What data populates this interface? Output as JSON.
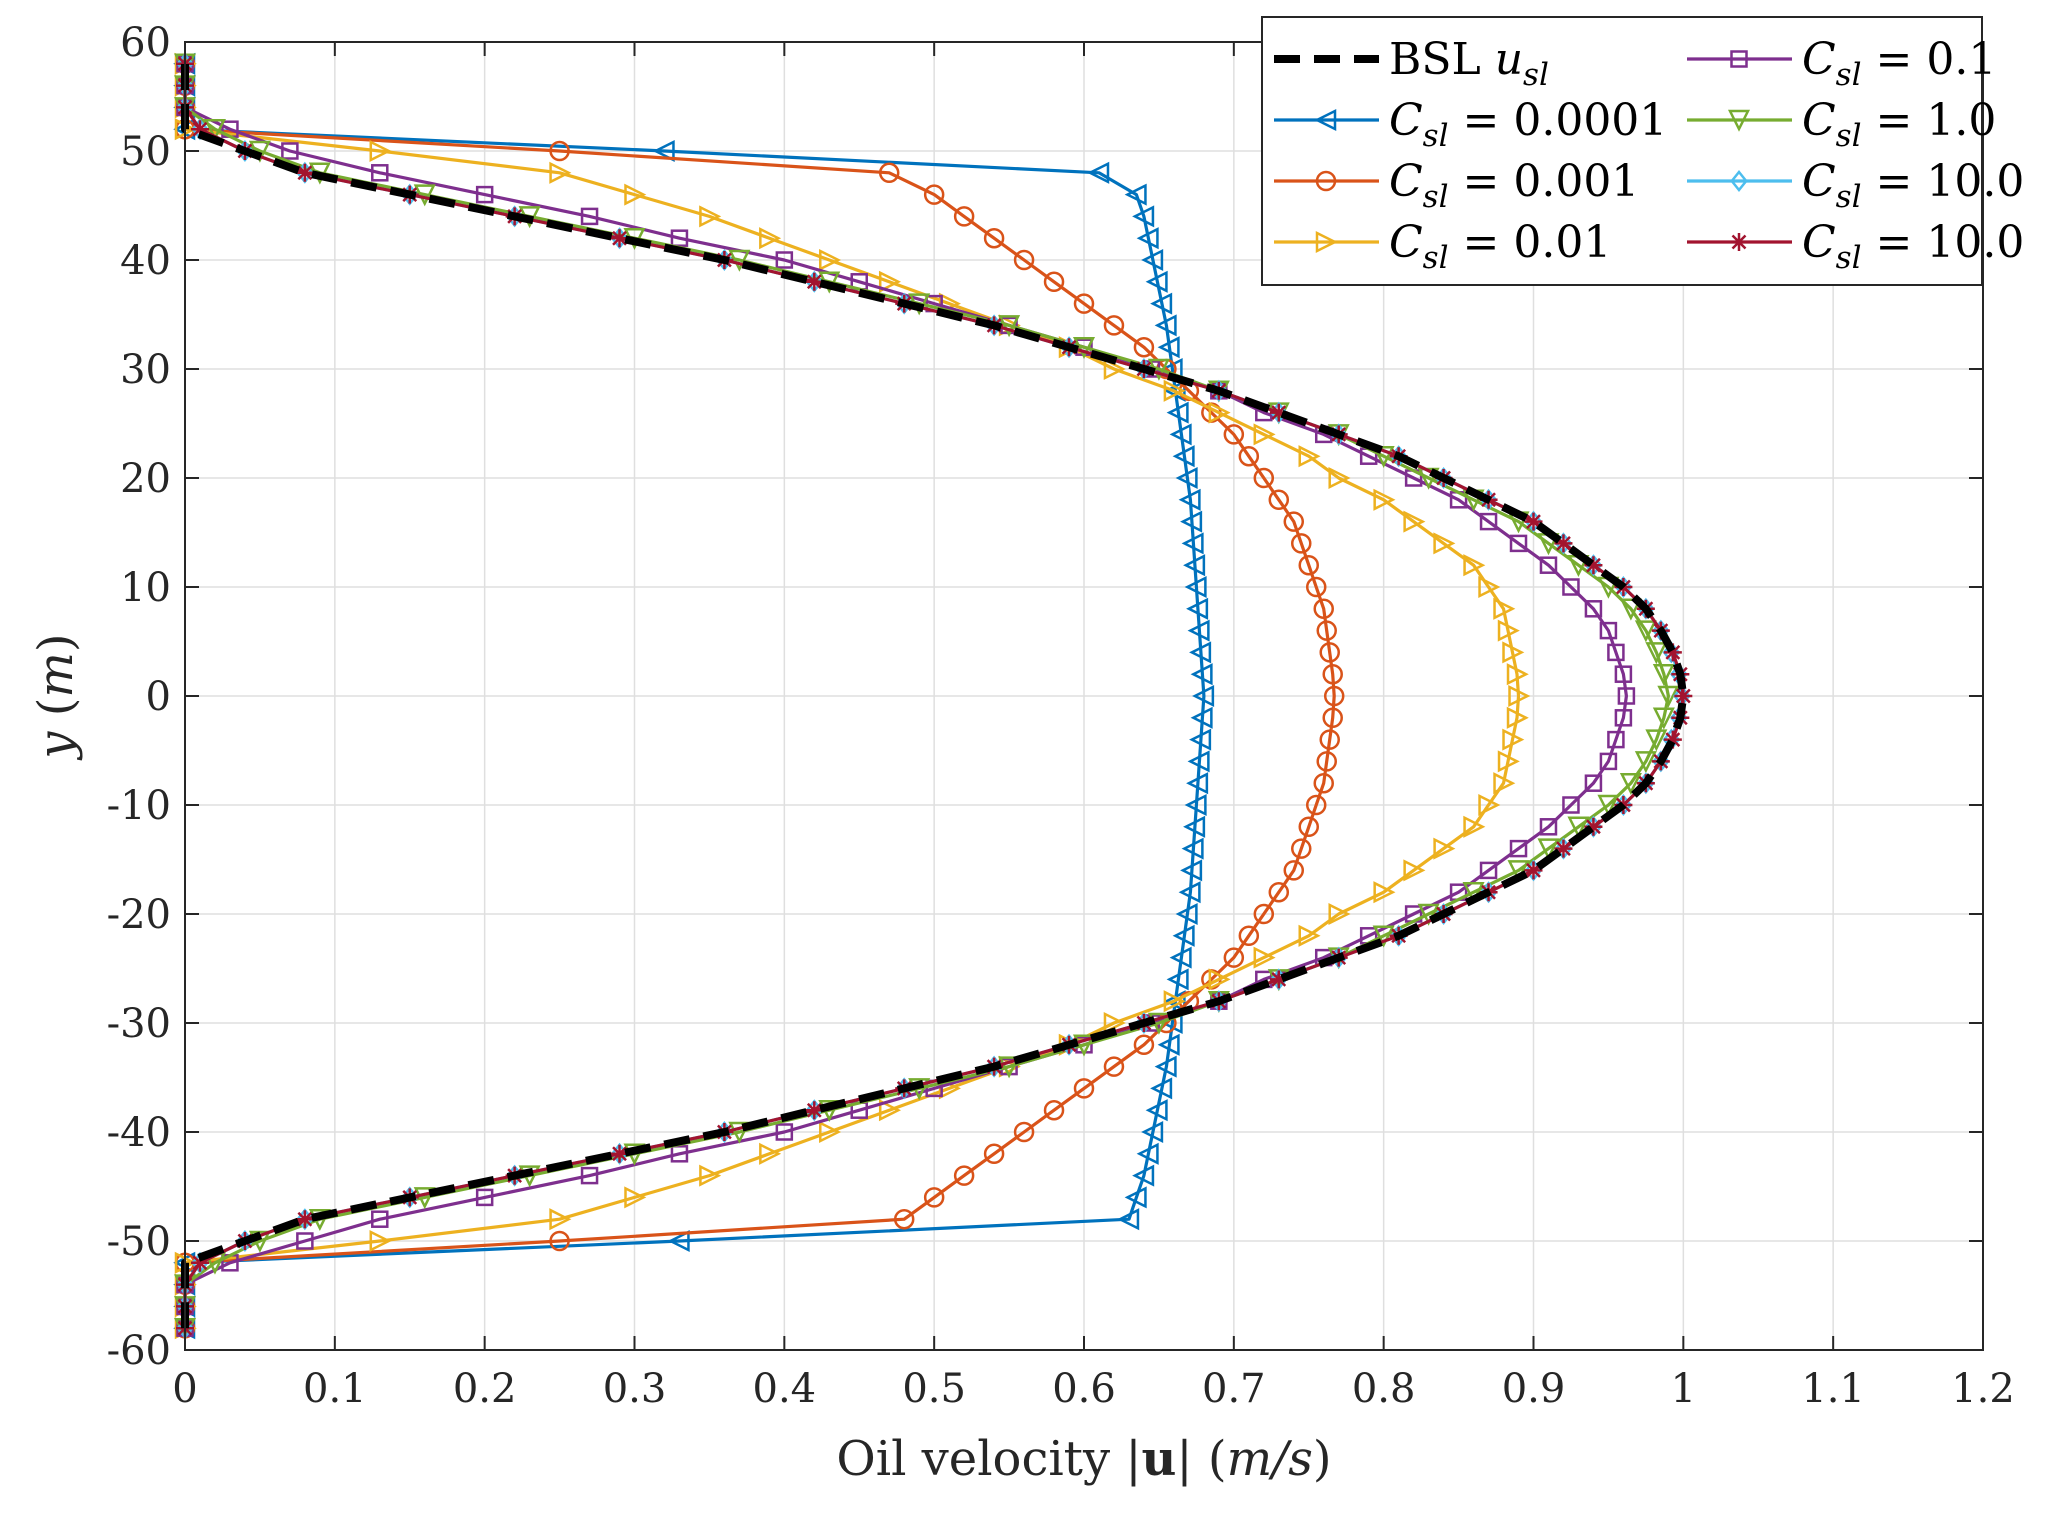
{
  "chart_data": {
    "type": "line",
    "title": "",
    "xlabel_parts": [
      "Oil velocity |",
      "u",
      "| (",
      "m/s",
      ")"
    ],
    "ylabel_parts": [
      "y",
      " (",
      "m",
      ")"
    ],
    "xlim": [
      0,
      1.2
    ],
    "ylim": [
      -60,
      60
    ],
    "xticks": [
      0,
      0.1,
      0.2,
      0.3,
      0.4,
      0.5,
      0.6,
      0.7,
      0.8,
      0.9,
      1,
      1.1,
      1.2
    ],
    "xtick_labels": [
      "0",
      "0.1",
      "0.2",
      "0.3",
      "0.4",
      "0.5",
      "0.6",
      "0.7",
      "0.8",
      "0.9",
      "1",
      "1.1",
      "1.2"
    ],
    "yticks": [
      -60,
      -50,
      -40,
      -30,
      -20,
      -10,
      0,
      10,
      20,
      30,
      40,
      50,
      60
    ],
    "ytick_labels": [
      "-60",
      "-50",
      "-40",
      "-30",
      "-20",
      "-10",
      "0",
      "10",
      "20",
      "30",
      "40",
      "50",
      "60"
    ],
    "grid": true,
    "legend_position": "top-right",
    "y": [
      -58,
      -56,
      -54,
      -52,
      -50,
      -48,
      -46,
      -44,
      -42,
      -40,
      -38,
      -36,
      -34,
      -32,
      -30,
      -28,
      -26,
      -24,
      -22,
      -20,
      -18,
      -16,
      -14,
      -12,
      -10,
      -8,
      -6,
      -4,
      -2,
      0,
      2,
      4,
      6,
      8,
      10,
      12,
      14,
      16,
      18,
      20,
      22,
      24,
      26,
      28,
      30,
      32,
      34,
      36,
      38,
      40,
      42,
      44,
      46,
      48,
      50,
      52,
      54,
      56,
      58
    ],
    "series": [
      {
        "name": "BSL u_sl",
        "label_main": "BSL ",
        "label_var": "u",
        "label_sub": "sl",
        "label_value": "",
        "color": "#000000",
        "style": "dashed",
        "marker": "none",
        "values": [
          0,
          0,
          0,
          0,
          0.04,
          0.08,
          0.15,
          0.22,
          0.29,
          0.36,
          0.42,
          0.48,
          0.54,
          0.59,
          0.64,
          0.69,
          0.73,
          0.77,
          0.81,
          0.84,
          0.87,
          0.9,
          0.92,
          0.94,
          0.96,
          0.975,
          0.985,
          0.993,
          0.998,
          1,
          0.998,
          0.993,
          0.985,
          0.975,
          0.96,
          0.94,
          0.92,
          0.9,
          0.87,
          0.84,
          0.81,
          0.77,
          0.73,
          0.69,
          0.64,
          0.59,
          0.54,
          0.48,
          0.42,
          0.36,
          0.29,
          0.22,
          0.15,
          0.08,
          0.04,
          0,
          0,
          0,
          0
        ]
      },
      {
        "name": "C_sl = 0.0001",
        "label_main": "",
        "label_var": "C",
        "label_sub": "sl",
        "label_value": " = 0.0001",
        "color": "#0072BD",
        "style": "solid",
        "marker": "triangle-left",
        "values": [
          0,
          0,
          0,
          0,
          0.33,
          0.63,
          0.635,
          0.64,
          0.643,
          0.646,
          0.649,
          0.652,
          0.655,
          0.657,
          0.659,
          0.661,
          0.663,
          0.665,
          0.667,
          0.669,
          0.671,
          0.672,
          0.673,
          0.674,
          0.675,
          0.676,
          0.677,
          0.678,
          0.679,
          0.68,
          0.679,
          0.678,
          0.677,
          0.676,
          0.675,
          0.674,
          0.673,
          0.672,
          0.671,
          0.669,
          0.667,
          0.665,
          0.663,
          0.661,
          0.659,
          0.657,
          0.655,
          0.652,
          0.649,
          0.646,
          0.643,
          0.64,
          0.635,
          0.61,
          0.32,
          0,
          0,
          0,
          0
        ]
      },
      {
        "name": "C_sl = 0.001",
        "label_main": "",
        "label_var": "C",
        "label_sub": "sl",
        "label_value": " = 0.001",
        "color": "#D95319",
        "style": "solid",
        "marker": "circle",
        "values": [
          0,
          0,
          0,
          0,
          0.25,
          0.48,
          0.5,
          0.52,
          0.54,
          0.56,
          0.58,
          0.6,
          0.62,
          0.64,
          0.655,
          0.67,
          0.685,
          0.7,
          0.71,
          0.72,
          0.73,
          0.74,
          0.745,
          0.75,
          0.755,
          0.76,
          0.762,
          0.764,
          0.766,
          0.767,
          0.766,
          0.764,
          0.762,
          0.76,
          0.755,
          0.75,
          0.745,
          0.74,
          0.73,
          0.72,
          0.71,
          0.7,
          0.685,
          0.67,
          0.655,
          0.64,
          0.62,
          0.6,
          0.58,
          0.56,
          0.54,
          0.52,
          0.5,
          0.47,
          0.25,
          0,
          0,
          0,
          0
        ]
      },
      {
        "name": "C_sl = 0.01",
        "label_main": "",
        "label_var": "C",
        "label_sub": "sl",
        "label_value": " = 0.01",
        "color": "#EDB120",
        "style": "solid",
        "marker": "triangle-right",
        "values": [
          0,
          0,
          0,
          0,
          0.13,
          0.25,
          0.3,
          0.35,
          0.39,
          0.43,
          0.47,
          0.51,
          0.55,
          0.59,
          0.62,
          0.66,
          0.69,
          0.72,
          0.75,
          0.77,
          0.8,
          0.82,
          0.84,
          0.86,
          0.87,
          0.88,
          0.883,
          0.886,
          0.889,
          0.89,
          0.889,
          0.886,
          0.883,
          0.88,
          0.87,
          0.86,
          0.84,
          0.82,
          0.8,
          0.77,
          0.75,
          0.72,
          0.69,
          0.66,
          0.62,
          0.59,
          0.55,
          0.51,
          0.47,
          0.43,
          0.39,
          0.35,
          0.3,
          0.25,
          0.13,
          0,
          0,
          0,
          0
        ]
      },
      {
        "name": "C_sl = 0.1",
        "label_main": "",
        "label_var": "C",
        "label_sub": "sl",
        "label_value": " = 0.1",
        "color": "#7E2F8E",
        "style": "solid",
        "marker": "square",
        "values": [
          0,
          0,
          0,
          0.03,
          0.08,
          0.13,
          0.2,
          0.27,
          0.33,
          0.4,
          0.45,
          0.5,
          0.55,
          0.6,
          0.645,
          0.69,
          0.72,
          0.76,
          0.79,
          0.82,
          0.85,
          0.87,
          0.89,
          0.91,
          0.925,
          0.94,
          0.95,
          0.955,
          0.96,
          0.962,
          0.96,
          0.955,
          0.95,
          0.94,
          0.925,
          0.91,
          0.89,
          0.87,
          0.85,
          0.82,
          0.79,
          0.76,
          0.72,
          0.69,
          0.645,
          0.6,
          0.55,
          0.5,
          0.45,
          0.4,
          0.33,
          0.27,
          0.2,
          0.13,
          0.07,
          0.03,
          0,
          0,
          0
        ]
      },
      {
        "name": "C_sl = 1.0",
        "label_main": "",
        "label_var": "C",
        "label_sub": "sl",
        "label_value": " = 1.0",
        "color": "#77AC30",
        "style": "solid",
        "marker": "triangle-down",
        "values": [
          0,
          0,
          0,
          0.02,
          0.05,
          0.09,
          0.16,
          0.23,
          0.3,
          0.37,
          0.43,
          0.49,
          0.55,
          0.6,
          0.65,
          0.69,
          0.73,
          0.77,
          0.8,
          0.83,
          0.86,
          0.89,
          0.91,
          0.93,
          0.95,
          0.965,
          0.975,
          0.982,
          0.987,
          0.99,
          0.987,
          0.982,
          0.975,
          0.965,
          0.95,
          0.93,
          0.91,
          0.89,
          0.86,
          0.83,
          0.8,
          0.77,
          0.73,
          0.69,
          0.65,
          0.6,
          0.55,
          0.49,
          0.43,
          0.37,
          0.3,
          0.23,
          0.16,
          0.09,
          0.05,
          0.02,
          0,
          0,
          0
        ]
      },
      {
        "name": "C_sl = 10.0",
        "label_main": "",
        "label_var": "C",
        "label_sub": "sl",
        "label_value": " = 10.0",
        "color": "#4DBEEE",
        "style": "solid",
        "marker": "diamond",
        "values": [
          0,
          0,
          0,
          0.01,
          0.04,
          0.08,
          0.15,
          0.22,
          0.29,
          0.36,
          0.42,
          0.48,
          0.54,
          0.59,
          0.64,
          0.69,
          0.73,
          0.77,
          0.81,
          0.84,
          0.87,
          0.9,
          0.92,
          0.94,
          0.96,
          0.975,
          0.985,
          0.992,
          0.997,
          0.999,
          0.997,
          0.992,
          0.985,
          0.975,
          0.96,
          0.94,
          0.92,
          0.9,
          0.87,
          0.84,
          0.81,
          0.77,
          0.73,
          0.69,
          0.64,
          0.59,
          0.54,
          0.48,
          0.42,
          0.36,
          0.29,
          0.22,
          0.15,
          0.08,
          0.04,
          0.01,
          0,
          0,
          0
        ]
      },
      {
        "name": "C_sl = 10.0",
        "label_main": "",
        "label_var": "C",
        "label_sub": "sl",
        "label_value": " = 10.0",
        "color": "#A2142F",
        "style": "solid",
        "marker": "asterisk",
        "values": [
          0,
          0,
          0,
          0.01,
          0.04,
          0.08,
          0.15,
          0.22,
          0.29,
          0.36,
          0.42,
          0.48,
          0.54,
          0.59,
          0.64,
          0.69,
          0.73,
          0.77,
          0.81,
          0.84,
          0.87,
          0.9,
          0.92,
          0.94,
          0.96,
          0.975,
          0.985,
          0.993,
          0.998,
          1,
          0.998,
          0.993,
          0.985,
          0.975,
          0.96,
          0.94,
          0.92,
          0.9,
          0.87,
          0.84,
          0.81,
          0.77,
          0.73,
          0.69,
          0.64,
          0.59,
          0.54,
          0.48,
          0.42,
          0.36,
          0.29,
          0.22,
          0.15,
          0.08,
          0.04,
          0.01,
          0,
          0,
          0
        ]
      }
    ]
  }
}
